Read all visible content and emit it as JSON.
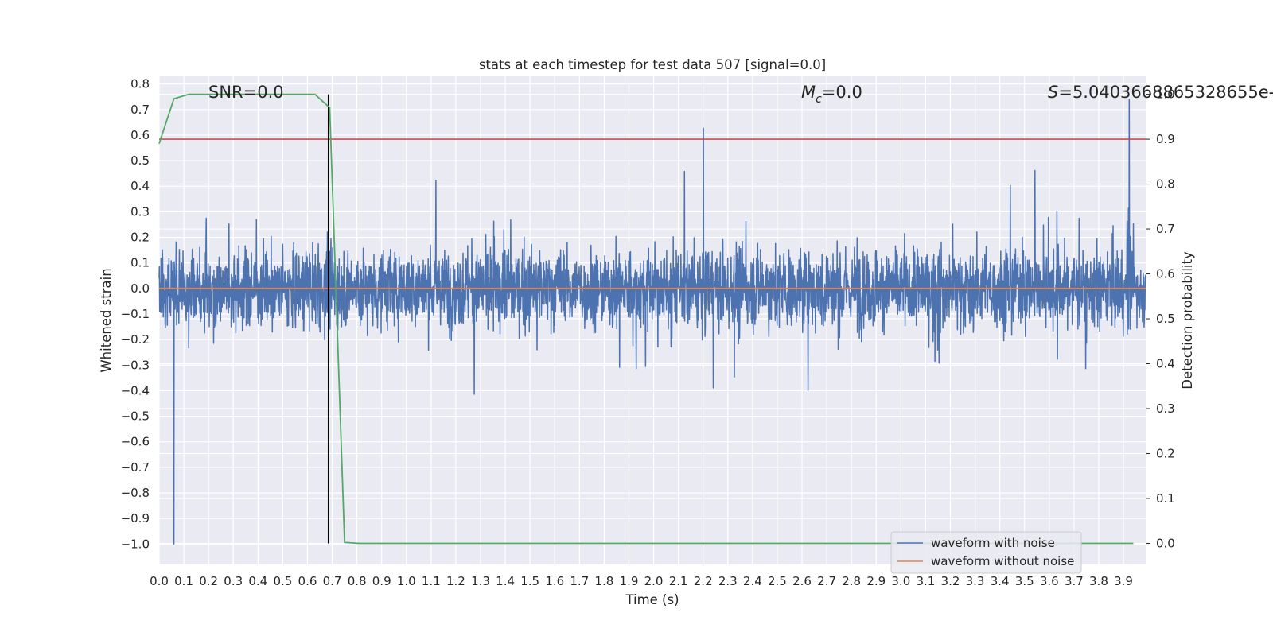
{
  "chart_data": {
    "type": "line",
    "title": "stats at each timestep for test data 507 [signal=0.0]",
    "xlabel": "Time (s)",
    "ylabel": "Whitened strain",
    "y2label": "Detection probability",
    "xlim": [
      0.0,
      3.99
    ],
    "ylim": [
      -1.08,
      0.83
    ],
    "y2lim": [
      -0.047,
      1.04
    ],
    "x_ticks": [
      "0.0",
      "0.1",
      "0.2",
      "0.3",
      "0.4",
      "0.5",
      "0.6",
      "0.7",
      "0.8",
      "0.9",
      "1.0",
      "1.1",
      "1.2",
      "1.3",
      "1.4",
      "1.5",
      "1.6",
      "1.7",
      "1.8",
      "1.9",
      "2.0",
      "2.1",
      "2.2",
      "2.3",
      "2.4",
      "2.5",
      "2.6",
      "2.7",
      "2.8",
      "2.9",
      "3.0",
      "3.1",
      "3.2",
      "3.3",
      "3.4",
      "3.5",
      "3.6",
      "3.7",
      "3.8",
      "3.9"
    ],
    "y_ticks": [
      "0.8",
      "0.7",
      "0.6",
      "0.5",
      "0.4",
      "0.3",
      "0.2",
      "0.1",
      "0.0",
      "−0.1",
      "−0.2",
      "−0.3",
      "−0.4",
      "−0.5",
      "−0.6",
      "−0.7",
      "−0.8",
      "−0.9",
      "−1.0"
    ],
    "y2_ticks": [
      "1.0",
      "0.9",
      "0.8",
      "0.7",
      "0.6",
      "0.5",
      "0.4",
      "0.3",
      "0.2",
      "0.1",
      "0.0"
    ],
    "grid": true,
    "legend_position": "lower-right",
    "annotations": {
      "snr": "SNR=0.0",
      "mc_symbol": "M",
      "mc_sub": "c",
      "mc_value": "=0.0",
      "s_symbol": "S",
      "s_value": "=5.0403668865328655e-"
    },
    "series": [
      {
        "name": "waveform with noise",
        "color": "#4c72b0",
        "kind": "noise",
        "noise_amplitude": 0.15,
        "peak_extremes": [
          0.74,
          -1.0
        ]
      },
      {
        "name": "waveform without noise",
        "color": "#dd8452",
        "kind": "constant",
        "y": 0.0
      },
      {
        "color": "#55a868",
        "axis": "right",
        "x": [
          0.0,
          0.06,
          0.12,
          0.18,
          0.24,
          0.3,
          0.36,
          0.42,
          0.48,
          0.54,
          0.6,
          0.63,
          0.69,
          0.75,
          0.81,
          1.0,
          1.5,
          2.0,
          2.5,
          3.0,
          3.5,
          3.94
        ],
        "y": [
          0.89,
          0.99,
          1.0,
          1.0,
          1.0,
          1.0,
          1.0,
          1.0,
          1.0,
          1.0,
          1.0,
          1.0,
          0.97,
          0.002,
          0.0,
          0.0,
          0.0,
          0.0,
          0.0,
          0.0,
          0.0,
          0.0
        ]
      }
    ],
    "threshold": {
      "y2": 0.9,
      "color": "#c44e52"
    },
    "vline": {
      "x": 0.685,
      "y2_range": [
        0.0,
        1.0
      ],
      "color": "#000000"
    }
  }
}
